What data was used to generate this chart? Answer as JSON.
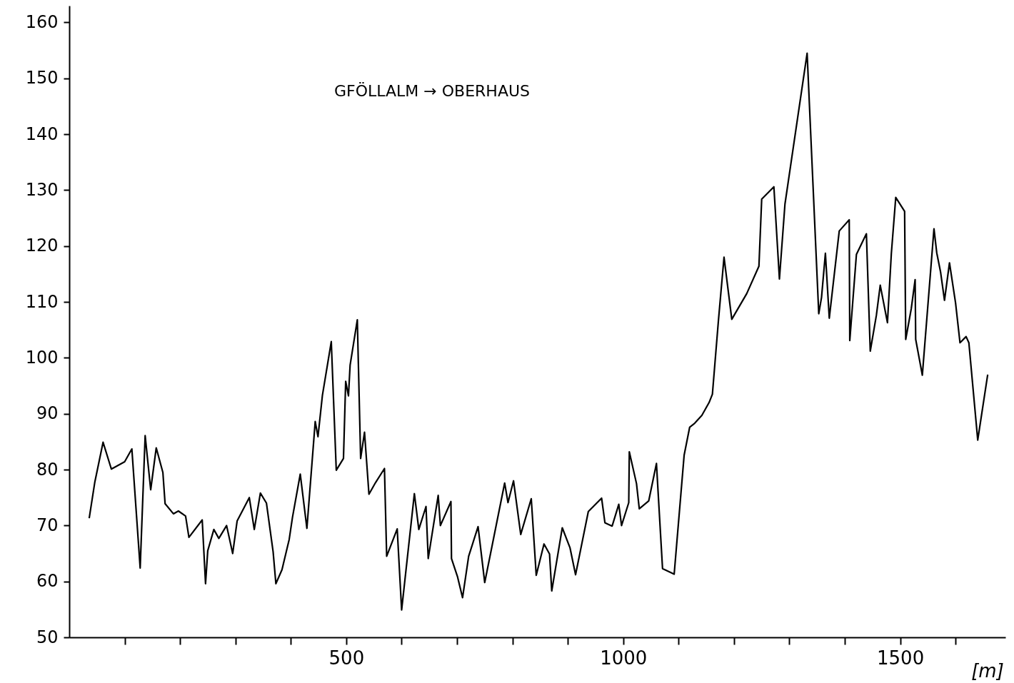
{
  "chart_data": {
    "type": "line",
    "xlabel": "[m]",
    "annotations": [
      "GFÖLLALM → OBERHAUS"
    ],
    "x": [
      36,
      46,
      61,
      76,
      100,
      113,
      128,
      137,
      147,
      157,
      169,
      173,
      188,
      197,
      210,
      216,
      240,
      246,
      250,
      261,
      270,
      284,
      295,
      303,
      325,
      334,
      345,
      356,
      368,
      373,
      384,
      397,
      403,
      417,
      429,
      444,
      449,
      457,
      473,
      482,
      495,
      499,
      504,
      507,
      520,
      526,
      533,
      541,
      553,
      569,
      573,
      592,
      600,
      623,
      631,
      644,
      648,
      666,
      670,
      689,
      690,
      701,
      710,
      721,
      738,
      750,
      786,
      792,
      802,
      815,
      834,
      843,
      857,
      867,
      871,
      890,
      904,
      914,
      937,
      961,
      967,
      980,
      992,
      997,
      1010,
      1011,
      1024,
      1029,
      1046,
      1060,
      1071,
      1092,
      1110,
      1120,
      1129,
      1142,
      1155,
      1161,
      1172,
      1182,
      1196,
      1223,
      1245,
      1250,
      1272,
      1282,
      1292,
      1332,
      1353,
      1358,
      1365,
      1372,
      1390,
      1408,
      1409,
      1421,
      1439,
      1446,
      1457,
      1464,
      1477,
      1484,
      1492,
      1508,
      1510,
      1520,
      1527,
      1528,
      1540,
      1561,
      1566,
      1573,
      1580,
      1589,
      1600,
      1608,
      1619,
      1624,
      1640,
      1658
    ],
    "series": [
      {
        "color": "#000000",
        "values": [
          71.3,
          77.7,
          84.9,
          80.1,
          81.4,
          83.7,
          62.4,
          86.1,
          76.4,
          83.9,
          79.5,
          73.9,
          72.1,
          72.6,
          71.7,
          67.9,
          71.0,
          59.6,
          65.5,
          69.3,
          67.7,
          70.0,
          65.0,
          70.8,
          75.0,
          69.3,
          75.8,
          74.0,
          65.3,
          59.6,
          62.1,
          67.5,
          71.5,
          79.2,
          69.5,
          88.6,
          85.9,
          93.3,
          102.9,
          79.9,
          82.0,
          95.8,
          93.2,
          98.7,
          106.8,
          82.0,
          86.7,
          75.6,
          77.7,
          80.2,
          64.5,
          69.4,
          54.9,
          75.7,
          69.3,
          73.4,
          64.1,
          75.4,
          70.0,
          74.3,
          64.1,
          60.8,
          57.1,
          64.5,
          69.8,
          59.8,
          77.6,
          74.1,
          78.0,
          68.4,
          74.8,
          61.1,
          66.7,
          64.9,
          58.3,
          69.6,
          66.0,
          61.2,
          72.5,
          74.9,
          70.5,
          69.9,
          73.8,
          70.0,
          74.1,
          83.2,
          77.5,
          73.0,
          74.4,
          81.1,
          62.3,
          61.3,
          82.6,
          87.6,
          88.3,
          89.7,
          92.0,
          93.5,
          106.8,
          118.0,
          106.9,
          111.5,
          116.4,
          128.4,
          130.6,
          114.1,
          127.5,
          154.5,
          107.9,
          110.8,
          118.7,
          107.1,
          122.7,
          124.7,
          103.1,
          118.5,
          122.2,
          101.2,
          107.6,
          113.0,
          106.3,
          118.6,
          128.7,
          126.2,
          103.3,
          108.8,
          114.0,
          103.3,
          96.9,
          123.1,
          118.8,
          115.3,
          110.3,
          117.0,
          109.8,
          102.7,
          103.8,
          102.7,
          85.3,
          97.0
        ]
      }
    ],
    "xlim": [
      0,
      1690
    ],
    "xticks": [
      {
        "value": 100,
        "label": null
      },
      {
        "value": 200,
        "label": null
      },
      {
        "value": 300,
        "label": null
      },
      {
        "value": 400,
        "label": null
      },
      500,
      {
        "value": 600,
        "label": null
      },
      {
        "value": 700,
        "label": null
      },
      {
        "value": 800,
        "label": null
      },
      {
        "value": 900,
        "label": null
      },
      1000,
      {
        "value": 1100,
        "label": null
      },
      {
        "value": 1200,
        "label": null
      },
      {
        "value": 1300,
        "label": null
      },
      {
        "value": 1400,
        "label": null
      },
      1500,
      {
        "value": 1600,
        "label": null
      }
    ],
    "ylim": [
      50,
      163
    ],
    "yticks": [
      50,
      60,
      70,
      80,
      90,
      100,
      110,
      120,
      130,
      140,
      150,
      160
    ],
    "grid": false,
    "marker": "none",
    "line_style": "solid"
  }
}
